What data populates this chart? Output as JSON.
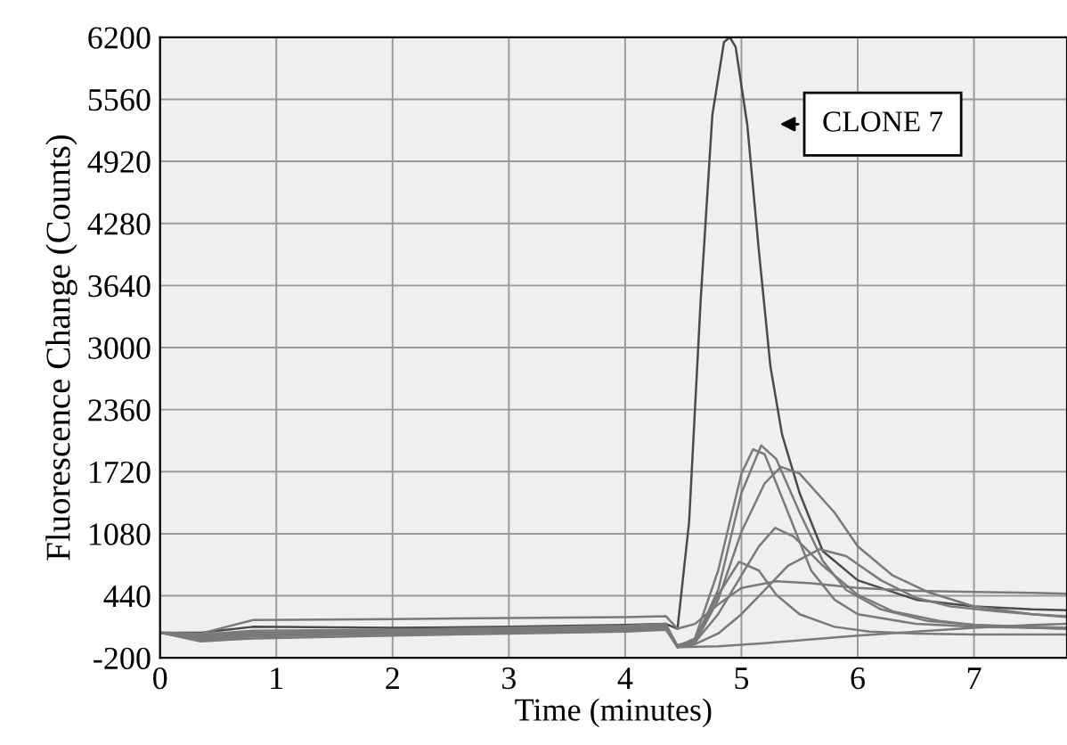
{
  "chart_data": {
    "type": "line",
    "xlabel": "Time (minutes)",
    "ylabel": "Fluorescence Change (Counts)",
    "xlim": [
      0,
      7.8
    ],
    "xticks": [
      0,
      1,
      2,
      3,
      4,
      5,
      6,
      7
    ],
    "ylim": [
      -200,
      6200
    ],
    "yticks": [
      -200,
      440,
      1080,
      1720,
      2360,
      3000,
      3640,
      4280,
      4920,
      5560,
      6200
    ],
    "grid": true,
    "legend": false,
    "marker": "none",
    "line_style": "solid",
    "annotations": [
      "CLONE 7"
    ],
    "series": [
      {
        "color": "#4a4a4a",
        "x": [
          0,
          0.35,
          0.8,
          2,
          3,
          4,
          4.35,
          4.45,
          4.55,
          4.65,
          4.75,
          4.85,
          4.9,
          4.95,
          5.05,
          5.15,
          5.25,
          5.35,
          5.5,
          5.7,
          6.0,
          6.5,
          7.0,
          7.5,
          7.8
        ],
        "values": [
          60,
          60,
          120,
          110,
          120,
          140,
          150,
          100,
          1200,
          3500,
          5400,
          6150,
          6200,
          6100,
          5300,
          4000,
          2800,
          2100,
          1500,
          900,
          600,
          400,
          330,
          300,
          290
        ]
      },
      {
        "color": "#7a7a7a",
        "x": [
          0,
          0.35,
          0.8,
          2,
          3,
          4,
          4.35,
          4.45,
          4.6,
          4.8,
          5.0,
          5.1,
          5.2,
          5.4,
          5.6,
          5.8,
          6.0,
          6.5,
          7.0,
          7.5,
          7.8
        ],
        "values": [
          60,
          40,
          80,
          90,
          110,
          130,
          150,
          -80,
          0,
          700,
          1700,
          1950,
          1900,
          1300,
          700,
          400,
          250,
          150,
          120,
          110,
          100
        ]
      },
      {
        "color": "#7a7a7a",
        "x": [
          0,
          0.35,
          0.8,
          2,
          3,
          4,
          4.35,
          4.45,
          4.6,
          4.8,
          5.0,
          5.17,
          5.3,
          5.5,
          5.7,
          5.9,
          6.2,
          6.6,
          7.0,
          7.5,
          7.8
        ],
        "values": [
          60,
          30,
          60,
          80,
          100,
          120,
          140,
          -90,
          -20,
          500,
          1500,
          1990,
          1850,
          1300,
          800,
          500,
          300,
          180,
          140,
          120,
          110
        ]
      },
      {
        "color": "#7a7a7a",
        "x": [
          0,
          0.35,
          0.8,
          2,
          3,
          4,
          4.35,
          4.45,
          4.6,
          4.8,
          5.0,
          5.2,
          5.34,
          5.5,
          5.8,
          6.0,
          6.3,
          6.6,
          7.0,
          7.5,
          7.8
        ],
        "values": [
          60,
          20,
          50,
          70,
          90,
          110,
          130,
          -90,
          -50,
          400,
          1100,
          1600,
          1770,
          1700,
          1300,
          950,
          650,
          480,
          330,
          250,
          220
        ]
      },
      {
        "color": "#7a7a7a",
        "x": [
          0,
          0.35,
          0.8,
          2,
          3,
          4,
          4.35,
          4.45,
          4.6,
          4.8,
          5.0,
          5.15,
          5.29,
          5.45,
          5.7,
          6.0,
          6.3,
          6.7,
          7.0,
          7.5,
          7.8
        ],
        "values": [
          60,
          0,
          40,
          60,
          80,
          100,
          120,
          -80,
          -40,
          250,
          650,
          950,
          1140,
          1050,
          750,
          450,
          280,
          180,
          140,
          110,
          100
        ]
      },
      {
        "color": "#7a7a7a",
        "x": [
          0,
          0.35,
          0.8,
          2,
          3,
          4,
          4.35,
          4.45,
          4.6,
          4.8,
          5.0,
          5.2,
          5.4,
          5.67,
          5.9,
          6.2,
          6.5,
          6.8,
          7.2,
          7.5,
          7.8
        ],
        "values": [
          60,
          10,
          30,
          50,
          70,
          90,
          110,
          -90,
          -60,
          50,
          250,
          500,
          750,
          920,
          850,
          600,
          420,
          330,
          280,
          250,
          230
        ]
      },
      {
        "color": "#7a7a7a",
        "x": [
          0,
          0.35,
          0.8,
          2,
          3,
          4,
          4.35,
          4.45,
          4.6,
          4.8,
          4.98,
          5.15,
          5.3,
          5.5,
          5.8,
          6.1,
          6.5,
          7.0,
          7.5,
          7.8
        ],
        "values": [
          60,
          -20,
          20,
          50,
          70,
          90,
          110,
          -70,
          -20,
          450,
          790,
          700,
          450,
          250,
          120,
          70,
          50,
          40,
          40,
          40
        ]
      },
      {
        "color": "#7a7a7a",
        "x": [
          0,
          0.35,
          0.8,
          2,
          3,
          4,
          4.35,
          4.45,
          4.6,
          4.8,
          5.0,
          5.3,
          5.6,
          6.0,
          6.5,
          7.0,
          7.5,
          7.8
        ],
        "values": [
          60,
          50,
          190,
          200,
          210,
          220,
          230,
          100,
          150,
          350,
          520,
          590,
          570,
          520,
          490,
          480,
          470,
          460
        ]
      },
      {
        "color": "#7a7a7a",
        "x": [
          0,
          0.35,
          0.8,
          2,
          3,
          4,
          4.35,
          4.45,
          4.8,
          5.2,
          5.6,
          6.0,
          6.5,
          7.0,
          7.5,
          7.8
        ],
        "values": [
          60,
          -30,
          0,
          30,
          50,
          70,
          90,
          -90,
          -80,
          -50,
          -10,
          30,
          70,
          110,
          140,
          150
        ]
      }
    ]
  }
}
